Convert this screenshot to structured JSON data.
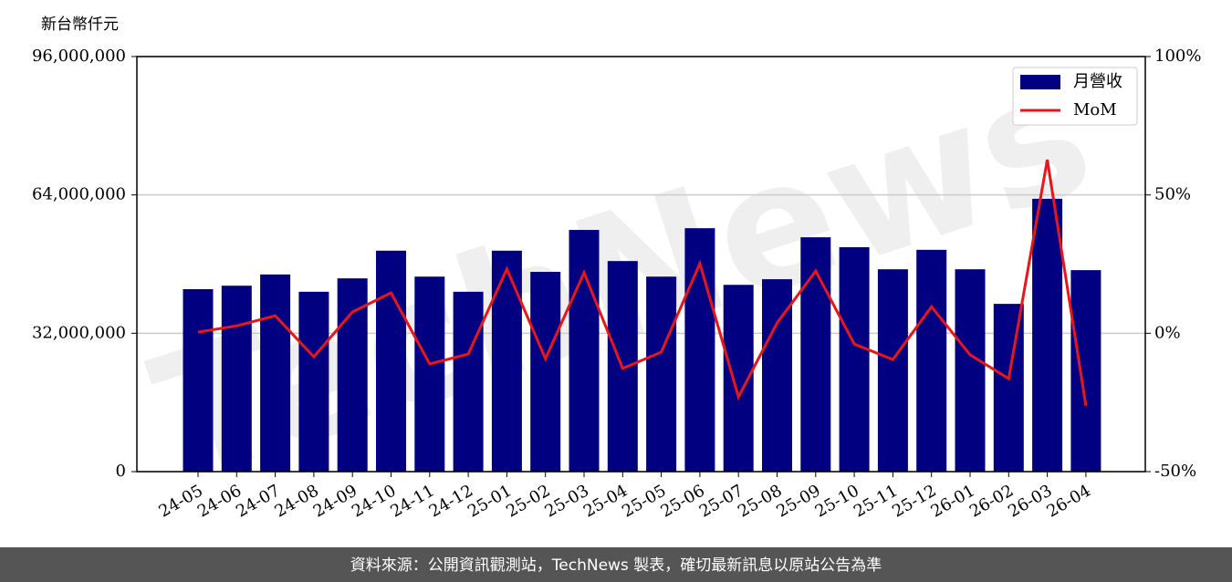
{
  "unit_label": "新台幣仟元",
  "watermark": "TechNews",
  "footer": "資料來源：公開資訊觀測站，TechNews 製表，確切最新訊息以原站公告為準",
  "chart_data": {
    "type": "combo",
    "categories": [
      "24-05",
      "24-06",
      "24-07",
      "24-08",
      "24-09",
      "24-10",
      "24-11",
      "24-12",
      "25-01",
      "25-02",
      "25-03",
      "25-04",
      "25-05",
      "25-06",
      "25-07",
      "25-08",
      "25-09",
      "25-10",
      "25-11",
      "25-12",
      "26-01",
      "26-02",
      "26-03",
      "26-04"
    ],
    "series": [
      {
        "name": "月營收",
        "type": "bar",
        "color": "#000080",
        "values": [
          42200000,
          43000000,
          45600000,
          41600000,
          44700000,
          51100000,
          45100000,
          41600000,
          51100000,
          46200000,
          55900000,
          48700000,
          45100000,
          56300000,
          43200000,
          44500000,
          54200000,
          51900000,
          46800000,
          51300000,
          46800000,
          38800000,
          63100000,
          46600000
        ]
      },
      {
        "name": "MoM",
        "type": "line",
        "color": "#e8161b",
        "axis": "y2",
        "values": [
          0.4,
          2.7,
          6.3,
          -8.5,
          7.7,
          14.6,
          -11.1,
          -7.5,
          23.2,
          -9.2,
          21.9,
          -12.7,
          -6.8,
          25.2,
          -23.0,
          3.7,
          22.5,
          -3.9,
          -9.5,
          9.6,
          -7.8,
          -16.4,
          62.7,
          -26.2
        ]
      }
    ],
    "ylim": [
      0,
      96000000
    ],
    "yticks": [
      0,
      {
        "value": 32000000,
        "label": "32,000,000"
      },
      {
        "value": 64000000,
        "label": "64,000,000"
      },
      {
        "value": 96000000,
        "label": "96,000,000"
      }
    ],
    "y2lim": [
      -50,
      100
    ],
    "y2ticks": [
      {
        "value": -50,
        "label": "-50%"
      },
      {
        "value": 0,
        "label": "0%"
      },
      {
        "value": 50,
        "label": "50%"
      },
      {
        "value": 100,
        "label": "100%"
      }
    ],
    "grid": true,
    "legend": "upper right"
  }
}
